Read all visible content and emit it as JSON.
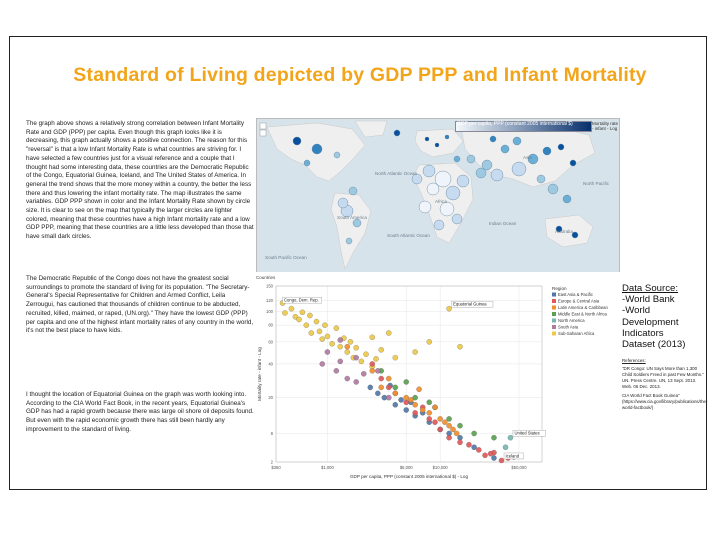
{
  "page": {
    "title": "Standard of Living depicted by GDP PPP and Infant Mortality"
  },
  "body": {
    "paragraphs": [
      "The graph above shows a relatively strong correlation between Infant Mortality Rate and GDP (PPP) per capita. Even though this graph looks like it is decreasing, this graph actually shows a positive connection. The reason for this \"reversal\" is that a low Infant Mortality Rate is what countries are striving for. I have selected a few countries just for a visual reference and a couple that I thought had some interesting data, these countries are the Democratic Republic of the Congo, Equatorial Guinea, Iceland, and The United States of America. In general the trend shows that the more money within a country, the better the less there and thus lowering the infant mortality rate. The map illustrates the same variables. GDP PPP shown in color and the Infant Mortality Rate shown by circle size. It is clear to see on the map that typically the larger circles are lighter colored, meaning that these countries have a high Infant mortality rate and a low GDP PPP, meaning that these countries are a little less developed than those that have small dark circles.",
      "The Democratic Republic of the Congo does not have the greatest social surroundings to promote the standard of living for its population. \"The Secretary-General's Special Representative for Children and Armed Conflict, Leila Zerrougui, has cautioned that thousands of children continue to be abducted, recruited, killed, maimed, or raped, (UN.org).\" They have the lowest GDP (PPP) per capita and one of the highest infant mortality rates of any country in the world, it's not the best place to have kids.",
      "I thought the location of Equatorial Guinea on the graph was worth looking into. According to the CIA World Fact Book, in the recent years, Equatorial Guinea's GDP has had a rapid growth because there was large oil shore oil deposits found. But even with the rapid economic growth there has still been hardly any improvement to the standard of living."
    ]
  },
  "map": {
    "legend_label": "GDP per capita, PPP (constant 2005 international $)",
    "legend_label_2": "Mortality rate - infant - Log",
    "colors": {
      "ocean": "#d7e3ea",
      "land": "#eeeeee"
    },
    "labels": {
      "north_atlantic": "North Atlantic Ocean",
      "south_atlantic": "South Atlantic Ocean",
      "indian_ocean": "Indian Ocean",
      "south_america": "South America",
      "africa": "Africa",
      "asia": "Asia",
      "australia": "Australia",
      "south_pacific": "South Pacific Ocean",
      "north_pacific": "North Pacific"
    }
  },
  "chart_data": {
    "type": "scatter",
    "title": "Countries",
    "xlabel": "GDP per capita, PPP (constant 2005 international $) - Log",
    "ylabel": "Mortality rate - infant - Log",
    "x_ticks": [
      "$350",
      "$1,000",
      "$5,000",
      "$10,000",
      "$50,000"
    ],
    "y_ticks": [
      "150",
      "120",
      "100",
      "80",
      "60",
      "40",
      "20",
      "8",
      "2"
    ],
    "xlim": [
      350,
      80000
    ],
    "ylim": [
      2,
      150
    ],
    "legend_title": "Region",
    "legend": [
      {
        "name": "East Asia & Pacific",
        "color": "#4e79a7"
      },
      {
        "name": "Europe & Central Asia",
        "color": "#e15759"
      },
      {
        "name": "Latin America & Caribbean",
        "color": "#f28e2b"
      },
      {
        "name": "Middle East & North Africa",
        "color": "#59a14f"
      },
      {
        "name": "North America",
        "color": "#76b7b2"
      },
      {
        "name": "South Asia",
        "color": "#b07aa1"
      },
      {
        "name": "Sub-Saharan Africa",
        "color": "#edc948"
      }
    ],
    "annotations": [
      {
        "label": "Congo, Dem. Rep.",
        "x": 380,
        "y": 112
      },
      {
        "label": "Equatorial Guinea",
        "x": 12000,
        "y": 105
      },
      {
        "label": "United States",
        "x": 42000,
        "y": 7
      },
      {
        "label": "Iceland",
        "x": 35000,
        "y": 2.5
      }
    ],
    "points": [
      [
        400,
        115,
        6
      ],
      [
        420,
        98,
        6
      ],
      [
        480,
        105,
        6
      ],
      [
        520,
        92,
        6
      ],
      [
        560,
        88,
        6
      ],
      [
        600,
        99,
        6
      ],
      [
        650,
        80,
        6
      ],
      [
        700,
        94,
        6
      ],
      [
        720,
        70,
        6
      ],
      [
        800,
        85,
        6
      ],
      [
        850,
        72,
        6
      ],
      [
        900,
        63,
        6
      ],
      [
        950,
        80,
        6
      ],
      [
        1000,
        66,
        6
      ],
      [
        1100,
        58,
        6
      ],
      [
        1200,
        76,
        6
      ],
      [
        1300,
        55,
        6
      ],
      [
        1400,
        64,
        6
      ],
      [
        1500,
        50,
        6
      ],
      [
        1600,
        60,
        6
      ],
      [
        1700,
        45,
        6
      ],
      [
        1800,
        54,
        6
      ],
      [
        2000,
        42,
        6
      ],
      [
        2200,
        48,
        6
      ],
      [
        2500,
        38,
        6
      ],
      [
        2700,
        44,
        6
      ],
      [
        3000,
        52,
        6
      ],
      [
        900,
        40,
        5
      ],
      [
        1200,
        35,
        5
      ],
      [
        1500,
        30,
        5
      ],
      [
        1800,
        28,
        5
      ],
      [
        2100,
        33,
        5
      ],
      [
        1300,
        42,
        5
      ],
      [
        2400,
        25,
        0
      ],
      [
        2800,
        22,
        0
      ],
      [
        3200,
        20,
        0
      ],
      [
        3600,
        26,
        0
      ],
      [
        4000,
        17,
        0
      ],
      [
        4500,
        19,
        0
      ],
      [
        5000,
        15,
        0
      ],
      [
        5500,
        18,
        0
      ],
      [
        6000,
        13,
        0
      ],
      [
        7000,
        14,
        0
      ],
      [
        8000,
        11,
        0
      ],
      [
        9000,
        16,
        0
      ],
      [
        10000,
        9,
        0
      ],
      [
        12000,
        8,
        0
      ],
      [
        15000,
        7,
        0
      ],
      [
        20000,
        5,
        0
      ],
      [
        30000,
        3,
        0
      ],
      [
        35000,
        2.5,
        1
      ],
      [
        25000,
        3.5,
        1
      ],
      [
        30000,
        4,
        1
      ],
      [
        40000,
        3,
        1
      ],
      [
        45000,
        3.2,
        1
      ],
      [
        28000,
        3.8,
        1
      ],
      [
        22000,
        4.5,
        1
      ],
      [
        18000,
        5.5,
        1
      ],
      [
        15000,
        6,
        1
      ],
      [
        12000,
        7,
        1
      ],
      [
        10000,
        9,
        1
      ],
      [
        8000,
        12,
        1
      ],
      [
        6000,
        14,
        1
      ],
      [
        5000,
        18,
        1
      ],
      [
        4000,
        22,
        1
      ],
      [
        3500,
        25,
        1
      ],
      [
        3000,
        30,
        1
      ],
      [
        2500,
        40,
        1
      ],
      [
        7000,
        16,
        1
      ],
      [
        9000,
        11,
        1
      ],
      [
        3000,
        25,
        2
      ],
      [
        4000,
        22,
        2
      ],
      [
        5000,
        20,
        2
      ],
      [
        6000,
        17,
        2
      ],
      [
        7000,
        15,
        2
      ],
      [
        8000,
        14,
        2
      ],
      [
        9000,
        16,
        2
      ],
      [
        10000,
        12,
        2
      ],
      [
        11000,
        11,
        2
      ],
      [
        12000,
        10,
        2
      ],
      [
        13000,
        9,
        2
      ],
      [
        14000,
        8,
        2
      ],
      [
        2500,
        35,
        2
      ],
      [
        1500,
        55,
        2
      ],
      [
        5500,
        19,
        2
      ],
      [
        6500,
        24,
        2
      ],
      [
        3500,
        30,
        2
      ],
      [
        4000,
        25,
        3
      ],
      [
        6000,
        20,
        3
      ],
      [
        8000,
        18,
        3
      ],
      [
        12000,
        12,
        3
      ],
      [
        15000,
        10,
        3
      ],
      [
        20000,
        8,
        3
      ],
      [
        30000,
        7,
        3
      ],
      [
        5000,
        28,
        3
      ],
      [
        3000,
        35,
        3
      ],
      [
        42000,
        7,
        4
      ],
      [
        38000,
        5,
        4
      ],
      [
        1000,
        50,
        5
      ],
      [
        1800,
        45,
        5
      ],
      [
        2800,
        35,
        5
      ],
      [
        3500,
        20,
        5
      ],
      [
        1300,
        62,
        5
      ],
      [
        12000,
        105,
        6
      ],
      [
        8000,
        60,
        6
      ],
      [
        15000,
        55,
        6
      ],
      [
        6000,
        50,
        6
      ],
      [
        4000,
        45,
        6
      ],
      [
        3500,
        70,
        6
      ],
      [
        2500,
        65,
        6
      ]
    ]
  },
  "sources": {
    "lines": [
      "Data Source:",
      "-World Bank",
      "-World",
      "Development",
      "Indicators",
      "Dataset (2013)"
    ],
    "references_heading": "References:",
    "references": [
      "\"DR Congo: UN Says More than 1,300 Child Soldiers Freed in past Few Months.\" UN. Press Centre. UN, 13 Sept. 2013. Web. 06 Dec. 2013.",
      "CIA World Fact Book Guinea\" (https://www.cia.gov/library/publications/the-world-factbook/)"
    ]
  }
}
